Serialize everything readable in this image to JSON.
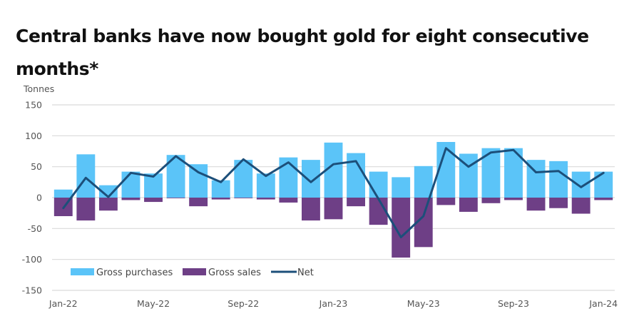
{
  "chart_data": {
    "type": "bar",
    "title": "Central banks have now bought gold for eight consecutive months*",
    "xlabel": "",
    "ylabel": "Tonnes",
    "ylim": [
      -150,
      150
    ],
    "yticks": [
      150,
      100,
      50,
      0,
      -50,
      -100,
      -150
    ],
    "grid": true,
    "legend_position": "bottom-left",
    "categories": [
      "Jan-22",
      "Feb-22",
      "Mar-22",
      "Apr-22",
      "May-22",
      "Jun-22",
      "Jul-22",
      "Aug-22",
      "Sep-22",
      "Oct-22",
      "Nov-22",
      "Dec-22",
      "Jan-23",
      "Feb-23",
      "Mar-23",
      "Apr-23",
      "May-23",
      "Jun-23",
      "Jul-23",
      "Aug-23",
      "Sep-23",
      "Oct-23",
      "Nov-23",
      "Dec-23",
      "Jan-24"
    ],
    "xtick_labels": [
      {
        "index": 0,
        "label": "Jan-22"
      },
      {
        "index": 4,
        "label": "May-22"
      },
      {
        "index": 8,
        "label": "Sep-22"
      },
      {
        "index": 12,
        "label": "Jan-23"
      },
      {
        "index": 16,
        "label": "May-23"
      },
      {
        "index": 20,
        "label": "Sep-23"
      },
      {
        "index": 24,
        "label": "Jan-24"
      }
    ],
    "series": [
      {
        "name": "Gross purchases",
        "kind": "bar",
        "color": "#5BC4F8",
        "values": [
          13,
          70,
          20,
          42,
          39,
          69,
          54,
          28,
          61,
          39,
          65,
          61,
          89,
          72,
          42,
          33,
          51,
          90,
          71,
          80,
          80,
          61,
          59,
          42,
          42
        ]
      },
      {
        "name": "Gross sales",
        "kind": "bar",
        "color": "#6E3F86",
        "values": [
          -30,
          -37,
          -21,
          -4,
          -7,
          -1,
          -14,
          -3,
          -1,
          -3,
          -8,
          -37,
          -35,
          -14,
          -44,
          -97,
          -80,
          -12,
          -23,
          -9,
          -4,
          -21,
          -17,
          -26,
          -4
        ]
      },
      {
        "name": "Net",
        "kind": "line",
        "color": "#1C4F7A",
        "values": [
          -17,
          32,
          1,
          40,
          34,
          67,
          41,
          25,
          62,
          35,
          57,
          25,
          54,
          59,
          -2,
          -64,
          -30,
          80,
          50,
          73,
          77,
          41,
          43,
          17,
          40
        ]
      }
    ]
  }
}
